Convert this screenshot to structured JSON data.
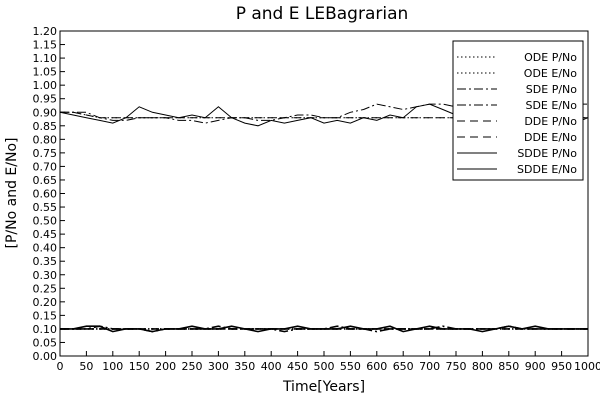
{
  "chart_data": {
    "type": "line",
    "title": "P and E LEBagrarian",
    "xlabel": "Time[Years]",
    "ylabel": "[P/No and E/No]",
    "xlim": [
      0,
      1000
    ],
    "ylim": [
      0,
      1.2
    ],
    "xticks": [
      0,
      50,
      100,
      150,
      200,
      250,
      300,
      350,
      400,
      450,
      500,
      550,
      600,
      650,
      700,
      750,
      800,
      850,
      900,
      950,
      1000
    ],
    "yticks": [
      0,
      0.05,
      0.1,
      0.15,
      0.2,
      0.25,
      0.3,
      0.35,
      0.4,
      0.45,
      0.5,
      0.55,
      0.6,
      0.65,
      0.7,
      0.75,
      0.8,
      0.85,
      0.9,
      0.95,
      1.0,
      1.05,
      1.1,
      1.15,
      1.2
    ],
    "ytick_labels": [
      "0.00",
      "0.05",
      "0.10",
      "0.15",
      "0.20",
      "0.25",
      "0.30",
      "0.35",
      "0.40",
      "0.45",
      "0.50",
      "0.55",
      "0.60",
      "0.65",
      "0.70",
      "0.75",
      "0.80",
      "0.85",
      "0.90",
      "0.95",
      "1.00",
      "1.05",
      "1.10",
      "1.15",
      "1.20"
    ],
    "grid": false,
    "legend": "top-right",
    "x": [
      0,
      25,
      50,
      75,
      100,
      125,
      150,
      175,
      200,
      225,
      250,
      275,
      300,
      325,
      350,
      375,
      400,
      425,
      450,
      475,
      500,
      525,
      550,
      575,
      600,
      625,
      650,
      675,
      700,
      725,
      750,
      775,
      800,
      825,
      850,
      875,
      900,
      925,
      950,
      975,
      1000
    ],
    "series": [
      {
        "name": "ODE P/No",
        "style": "dotted",
        "values": [
          0.9,
          0.9,
          0.89,
          0.88,
          0.88,
          0.88,
          0.88,
          0.88,
          0.88,
          0.88,
          0.88,
          0.88,
          0.88,
          0.88,
          0.88,
          0.88,
          0.88,
          0.88,
          0.88,
          0.88,
          0.88,
          0.88,
          0.88,
          0.88,
          0.88,
          0.88,
          0.88,
          0.88,
          0.88,
          0.88,
          0.88,
          0.88,
          0.88,
          0.88,
          0.88,
          0.88,
          0.88,
          0.88,
          0.88,
          0.88,
          0.88
        ]
      },
      {
        "name": "ODE E/No",
        "style": "dotted",
        "values": [
          0.1,
          0.1,
          0.1,
          0.1,
          0.1,
          0.1,
          0.1,
          0.1,
          0.1,
          0.1,
          0.1,
          0.1,
          0.1,
          0.1,
          0.1,
          0.1,
          0.1,
          0.1,
          0.1,
          0.1,
          0.1,
          0.1,
          0.1,
          0.1,
          0.1,
          0.1,
          0.1,
          0.1,
          0.1,
          0.1,
          0.1,
          0.1,
          0.1,
          0.1,
          0.1,
          0.1,
          0.1,
          0.1,
          0.1,
          0.1,
          0.1
        ]
      },
      {
        "name": "SDE P/No",
        "style": "dashdot",
        "values": [
          0.9,
          0.9,
          0.9,
          0.88,
          0.87,
          0.87,
          0.88,
          0.88,
          0.88,
          0.87,
          0.87,
          0.86,
          0.87,
          0.88,
          0.88,
          0.87,
          0.87,
          0.88,
          0.89,
          0.89,
          0.88,
          0.88,
          0.9,
          0.91,
          0.93,
          0.92,
          0.91,
          0.92,
          0.93,
          0.93,
          0.92,
          0.93,
          0.93,
          0.92,
          0.92,
          0.93,
          0.93,
          0.92,
          0.92,
          0.93,
          0.93
        ]
      },
      {
        "name": "SDE E/No",
        "style": "dashdot",
        "values": [
          0.1,
          0.1,
          0.1,
          0.11,
          0.1,
          0.1,
          0.1,
          0.09,
          0.1,
          0.1,
          0.1,
          0.1,
          0.11,
          0.1,
          0.1,
          0.1,
          0.1,
          0.09,
          0.1,
          0.1,
          0.1,
          0.11,
          0.1,
          0.1,
          0.09,
          0.1,
          0.1,
          0.1,
          0.1,
          0.11,
          0.1,
          0.1,
          0.1,
          0.1,
          0.11,
          0.1,
          0.1,
          0.1,
          0.1,
          0.1,
          0.1
        ]
      },
      {
        "name": "DDE P/No",
        "style": "dashed",
        "values": [
          0.9,
          0.9,
          0.89,
          0.88,
          0.88,
          0.88,
          0.88,
          0.88,
          0.88,
          0.88,
          0.88,
          0.88,
          0.88,
          0.88,
          0.88,
          0.88,
          0.88,
          0.88,
          0.88,
          0.88,
          0.88,
          0.88,
          0.88,
          0.88,
          0.88,
          0.88,
          0.88,
          0.88,
          0.88,
          0.88,
          0.88,
          0.88,
          0.88,
          0.88,
          0.88,
          0.88,
          0.88,
          0.88,
          0.88,
          0.88,
          0.88
        ]
      },
      {
        "name": "DDE E/No",
        "style": "dashed",
        "values": [
          0.1,
          0.1,
          0.1,
          0.1,
          0.1,
          0.1,
          0.1,
          0.1,
          0.1,
          0.1,
          0.1,
          0.1,
          0.1,
          0.1,
          0.1,
          0.1,
          0.1,
          0.1,
          0.1,
          0.1,
          0.1,
          0.1,
          0.1,
          0.1,
          0.1,
          0.1,
          0.1,
          0.1,
          0.1,
          0.1,
          0.1,
          0.1,
          0.1,
          0.1,
          0.1,
          0.1,
          0.1,
          0.1,
          0.1,
          0.1,
          0.1
        ]
      },
      {
        "name": "SDDE P/No",
        "style": "solid",
        "values": [
          0.9,
          0.89,
          0.88,
          0.87,
          0.86,
          0.88,
          0.92,
          0.9,
          0.89,
          0.88,
          0.89,
          0.88,
          0.92,
          0.88,
          0.86,
          0.85,
          0.87,
          0.86,
          0.87,
          0.88,
          0.86,
          0.87,
          0.86,
          0.88,
          0.87,
          0.89,
          0.88,
          0.92,
          0.93,
          0.91,
          0.89,
          0.88,
          0.87,
          0.86,
          0.88,
          0.89,
          0.87,
          0.86,
          0.87,
          0.86,
          0.88
        ]
      },
      {
        "name": "SDDE E/No",
        "style": "solid",
        "values": [
          0.1,
          0.1,
          0.11,
          0.11,
          0.09,
          0.1,
          0.1,
          0.09,
          0.1,
          0.1,
          0.11,
          0.1,
          0.1,
          0.11,
          0.1,
          0.09,
          0.1,
          0.1,
          0.11,
          0.1,
          0.1,
          0.1,
          0.11,
          0.1,
          0.1,
          0.11,
          0.09,
          0.1,
          0.11,
          0.1,
          0.1,
          0.1,
          0.09,
          0.1,
          0.11,
          0.1,
          0.11,
          0.1,
          0.1,
          0.1,
          0.1
        ]
      }
    ]
  }
}
